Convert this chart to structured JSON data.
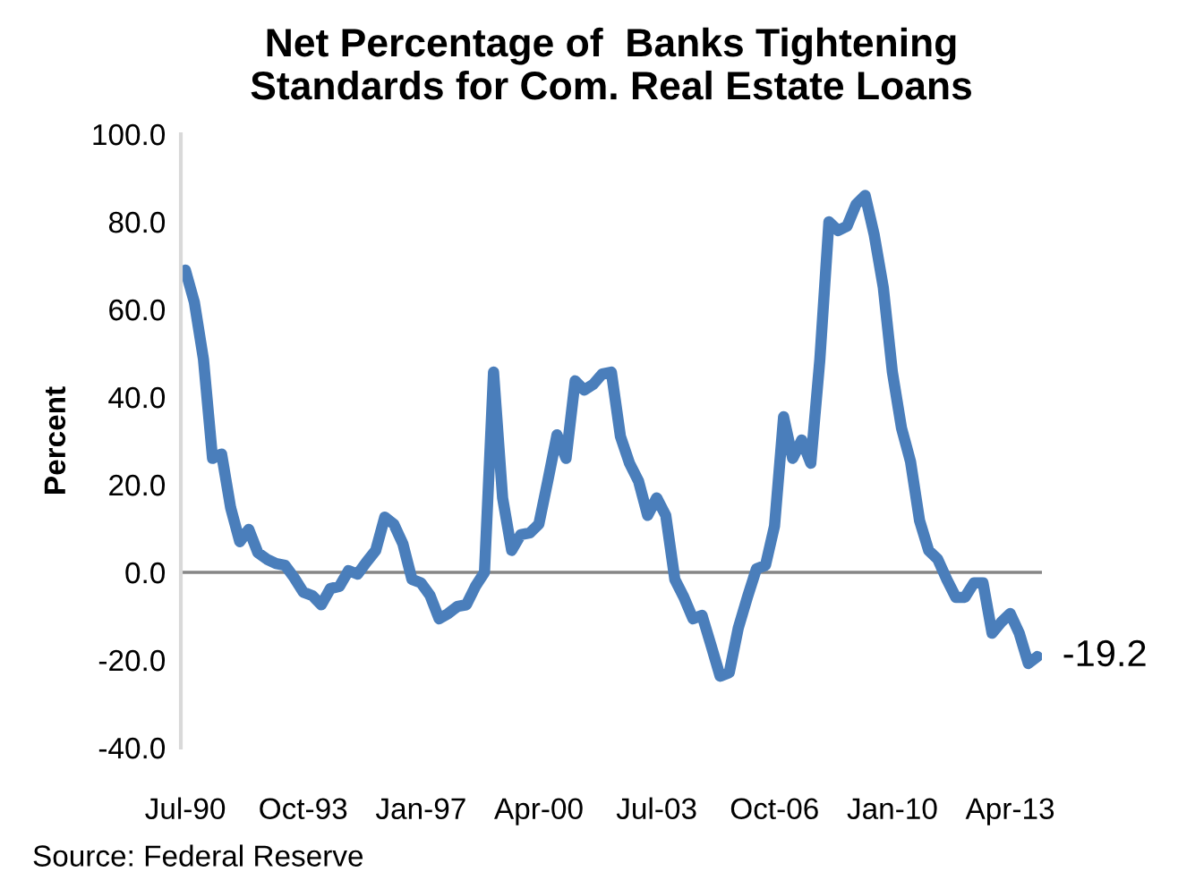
{
  "chart_data": {
    "type": "line",
    "title": "Net Percentage of  Banks Tightening\nStandards for Com. Real Estate Loans",
    "ylabel": "Percent",
    "categories": [
      "Jul-90",
      null,
      null,
      null,
      null,
      null,
      null,
      null,
      null,
      null,
      null,
      null,
      null,
      "Oct-93",
      null,
      null,
      null,
      null,
      null,
      null,
      null,
      null,
      null,
      null,
      null,
      null,
      "Jan-97",
      null,
      null,
      null,
      null,
      null,
      null,
      null,
      null,
      null,
      null,
      null,
      null,
      "Apr-00",
      null,
      null,
      null,
      null,
      null,
      null,
      null,
      null,
      null,
      null,
      null,
      null,
      "Jul-03",
      null,
      null,
      null,
      null,
      null,
      null,
      null,
      null,
      null,
      null,
      null,
      null,
      "Oct-06",
      null,
      null,
      null,
      null,
      null,
      null,
      null,
      null,
      null,
      null,
      null,
      null,
      "Jan-10",
      null,
      null,
      null,
      null,
      null,
      null,
      null,
      null,
      null,
      null,
      null,
      null,
      "Apr-13",
      null,
      null,
      null
    ],
    "series": [
      {
        "color": "#4a7ebb",
        "values": [
          69,
          61.6,
          48.6,
          26,
          27,
          14.7,
          7,
          9.8,
          4.5,
          3,
          2,
          1.6,
          -1.2,
          -4.5,
          -5.3,
          -7.4,
          -3.7,
          -3.2,
          0.4,
          -0.4,
          2.4,
          5,
          12.6,
          11,
          6.5,
          -1.6,
          -2.4,
          -5.3,
          -10.6,
          -9.4,
          -7.8,
          -7.4,
          -3.2,
          0,
          45.7,
          17,
          5,
          8.6,
          9,
          11,
          21,
          31.4,
          26,
          43.7,
          41.6,
          42.9,
          45.3,
          45.7,
          31,
          24.9,
          20.8,
          13,
          17,
          13,
          -1.6,
          -5.7,
          -10.6,
          -9.8,
          -16.7,
          -23.7,
          -22.9,
          -12.7,
          -5.7,
          0.8,
          1.6,
          10.6,
          35.5,
          26,
          30.2,
          24.9,
          48.6,
          80,
          78,
          79,
          84,
          86,
          77,
          65,
          45.7,
          33,
          25.3,
          11.8,
          5,
          3,
          -1.6,
          -5.7,
          -5.7,
          -2.4,
          -2.4,
          -13.9,
          -11.4,
          -9.4,
          -13.9,
          -20.8,
          -19.2
        ]
      }
    ],
    "ylim": [
      -40,
      100
    ],
    "yticks": [
      {
        "value": -40,
        "label": "-40.0"
      },
      {
        "value": -20,
        "label": "-20.0"
      },
      {
        "value": 0,
        "label": "0.0"
      },
      {
        "value": 20,
        "label": "20.0"
      },
      {
        "value": 40,
        "label": "40.0"
      },
      {
        "value": 60,
        "label": "60.0"
      },
      {
        "value": 80,
        "label": "80.0"
      },
      {
        "value": 100,
        "label": "100.0"
      }
    ],
    "ref_lines": [
      {
        "axis": "y",
        "value": 0,
        "color": "#868686"
      }
    ],
    "annotations": [
      "-19.2",
      "Source: Federal Reserve"
    ],
    "grid": false,
    "legend": false
  }
}
